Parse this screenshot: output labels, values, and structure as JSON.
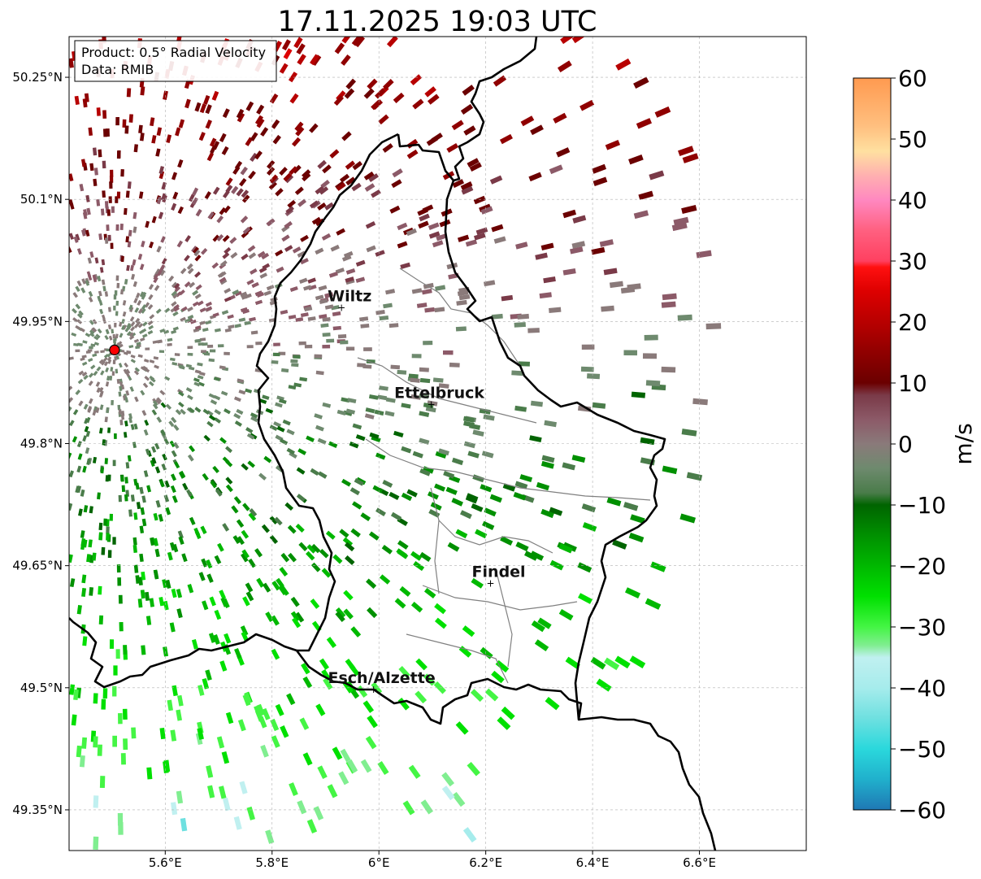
{
  "title": "17.11.2025 19:03 UTC",
  "info_box": {
    "line1": "Product: 0.5° Radial Velocity",
    "line2": "Data: RMIB"
  },
  "map": {
    "lon_range": [
      5.42,
      6.8
    ],
    "lat_range": [
      49.3,
      50.3
    ],
    "lon_ticks": [
      {
        "value": 5.6,
        "label": "5.6°E"
      },
      {
        "value": 5.8,
        "label": "5.8°E"
      },
      {
        "value": 6.0,
        "label": "6°E"
      },
      {
        "value": 6.2,
        "label": "6.2°E"
      },
      {
        "value": 6.4,
        "label": "6.4°E"
      },
      {
        "value": 6.6,
        "label": "6.6°E"
      }
    ],
    "lat_ticks": [
      {
        "value": 49.35,
        "label": "49.35°N"
      },
      {
        "value": 49.5,
        "label": "49.5°N"
      },
      {
        "value": 49.65,
        "label": "49.65°N"
      },
      {
        "value": 49.8,
        "label": "49.8°N"
      },
      {
        "value": 49.95,
        "label": "49.95°N"
      },
      {
        "value": 50.1,
        "label": "50.1°N"
      },
      {
        "value": 50.25,
        "label": "50.25°N"
      }
    ],
    "radar_site": {
      "lon": 5.505,
      "lat": 49.915
    },
    "cities": [
      {
        "name": "Wiltz",
        "lon": 5.93,
        "lat": 49.967
      },
      {
        "name": "Ettelbruck",
        "lon": 6.098,
        "lat": 49.848
      },
      {
        "name": "Findel",
        "lon": 6.209,
        "lat": 49.628
      },
      {
        "name": "Esch/Alzette",
        "lon": 5.99,
        "lat": 49.498
      }
    ],
    "grid_lines": true,
    "accent_colors": {
      "radar_marker": "#ff0000",
      "border": "#000000",
      "subregion_border": "#808080"
    }
  },
  "colorbar": {
    "label": "m/s",
    "range": [
      -60,
      60
    ],
    "ticks": [
      {
        "value": 60,
        "label": "60"
      },
      {
        "value": 50,
        "label": "50"
      },
      {
        "value": 40,
        "label": "40"
      },
      {
        "value": 30,
        "label": "30"
      },
      {
        "value": 20,
        "label": "20"
      },
      {
        "value": 10,
        "label": "10"
      },
      {
        "value": 0,
        "label": "0"
      },
      {
        "value": -10,
        "label": "−10"
      },
      {
        "value": -20,
        "label": "−20"
      },
      {
        "value": -30,
        "label": "−30"
      },
      {
        "value": -40,
        "label": "−40"
      },
      {
        "value": -50,
        "label": "−50"
      },
      {
        "value": -60,
        "label": "−60"
      }
    ],
    "stops": [
      {
        "value": -60,
        "color": "#1f78b4"
      },
      {
        "value": -55,
        "color": "#20b0cc"
      },
      {
        "value": -50,
        "color": "#2ad8dc"
      },
      {
        "value": -45,
        "color": "#6ee0e0"
      },
      {
        "value": -40,
        "color": "#a6ecec"
      },
      {
        "value": -35,
        "color": "#c0f0f0"
      },
      {
        "value": -33,
        "color": "#80ee90"
      },
      {
        "value": -30,
        "color": "#44f544"
      },
      {
        "value": -25,
        "color": "#00e000"
      },
      {
        "value": -20,
        "color": "#00b800"
      },
      {
        "value": -15,
        "color": "#009000"
      },
      {
        "value": -10,
        "color": "#006400"
      },
      {
        "value": -8,
        "color": "#4a7c4a"
      },
      {
        "value": -4,
        "color": "#6e8a6e"
      },
      {
        "value": 0,
        "color": "#8a7a7a"
      },
      {
        "value": 4,
        "color": "#8c5a68"
      },
      {
        "value": 8,
        "color": "#7a3a48"
      },
      {
        "value": 10,
        "color": "#6b0000"
      },
      {
        "value": 15,
        "color": "#900000"
      },
      {
        "value": 20,
        "color": "#b80000"
      },
      {
        "value": 25,
        "color": "#dd0000"
      },
      {
        "value": 29,
        "color": "#ff1010"
      },
      {
        "value": 30,
        "color": "#ff4060"
      },
      {
        "value": 35,
        "color": "#ff6080"
      },
      {
        "value": 40,
        "color": "#ff88c0"
      },
      {
        "value": 44,
        "color": "#ffb0b0"
      },
      {
        "value": 48,
        "color": "#ffe0a0"
      },
      {
        "value": 52,
        "color": "#ffc080"
      },
      {
        "value": 60,
        "color": "#ff9a50"
      }
    ]
  }
}
